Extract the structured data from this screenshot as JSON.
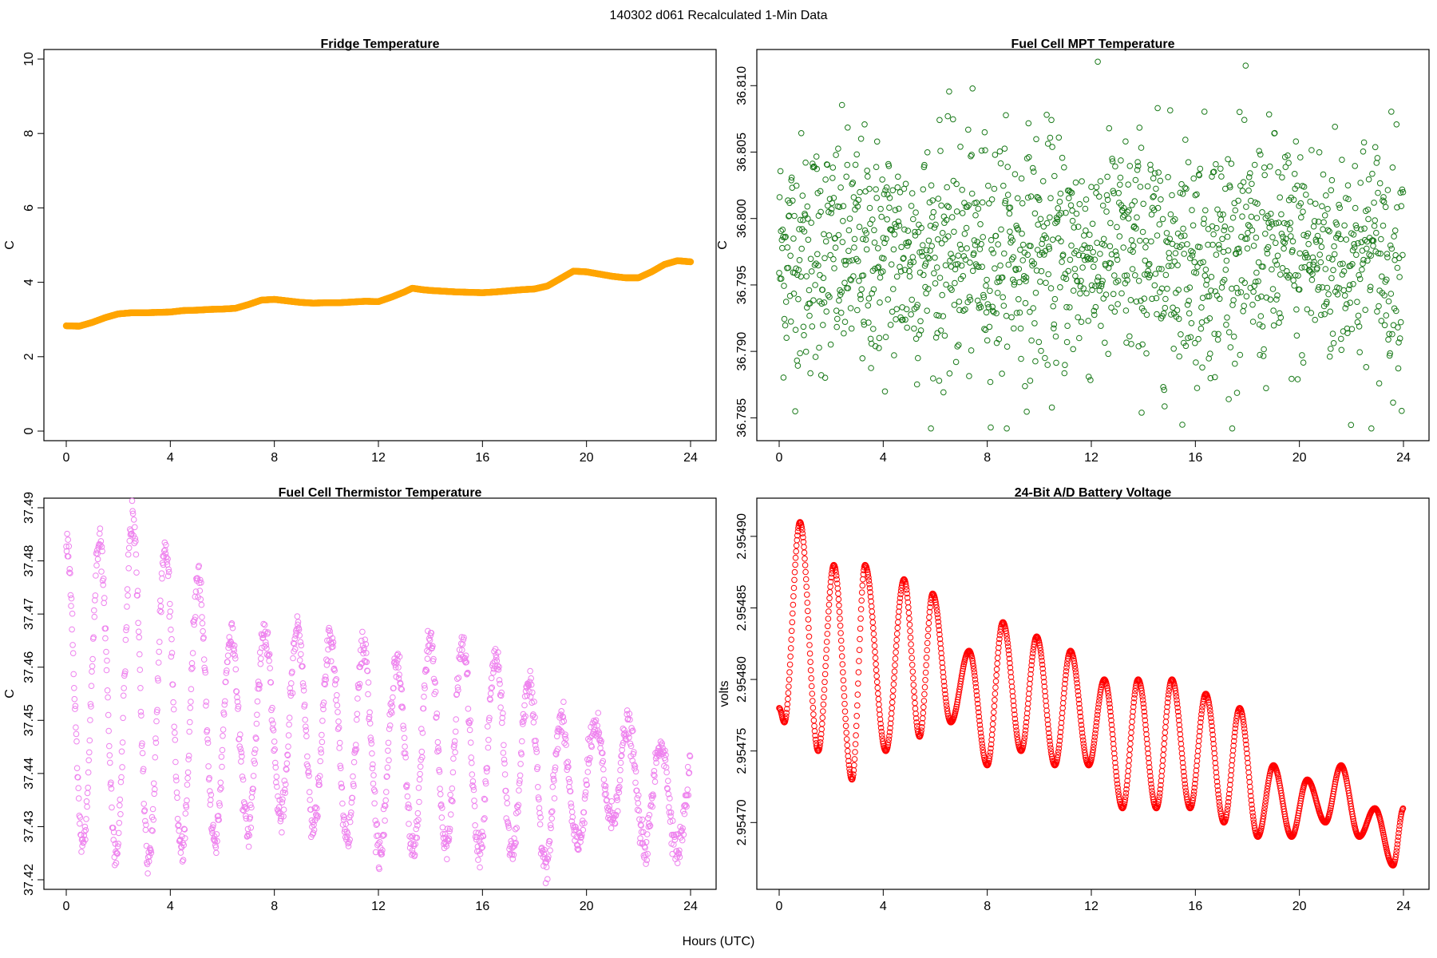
{
  "figure": {
    "title": "140302   d061   Recalculated 1-Min Data",
    "xlabel": "Hours (UTC)"
  },
  "chart_data": [
    {
      "type": "line",
      "title": "Fridge Temperature",
      "xlabel": "",
      "ylabel": "C",
      "color": "#FFA500",
      "marker": "filled-circle",
      "xlim": [
        0,
        24
      ],
      "ylim": [
        0,
        10
      ],
      "xticks": [
        0,
        4,
        8,
        12,
        16,
        20,
        24
      ],
      "yticks": [
        0,
        2,
        4,
        6,
        8,
        10
      ],
      "series": [
        {
          "x": [
            0,
            0.5,
            1,
            1.5,
            2,
            2.5,
            3,
            3.5,
            4,
            4.5,
            5,
            5.5,
            6,
            6.5,
            7,
            7.5,
            8,
            8.5,
            9,
            9.5,
            10,
            10.5,
            11,
            11.5,
            12,
            12.5,
            13,
            13.3,
            13.7,
            14,
            14.5,
            15,
            15.5,
            16,
            16.5,
            17,
            17.5,
            18,
            18.5,
            19,
            19.5,
            20,
            20.5,
            21,
            21.5,
            22,
            22.5,
            23,
            23.5,
            24
          ],
          "values": [
            2.83,
            2.82,
            2.92,
            3.05,
            3.15,
            3.18,
            3.18,
            3.19,
            3.2,
            3.24,
            3.25,
            3.27,
            3.28,
            3.3,
            3.4,
            3.52,
            3.54,
            3.5,
            3.46,
            3.44,
            3.45,
            3.45,
            3.47,
            3.49,
            3.48,
            3.6,
            3.74,
            3.84,
            3.8,
            3.78,
            3.76,
            3.74,
            3.73,
            3.72,
            3.74,
            3.77,
            3.8,
            3.82,
            3.9,
            4.1,
            4.3,
            4.28,
            4.22,
            4.16,
            4.12,
            4.12,
            4.28,
            4.48,
            4.58,
            4.55
          ]
        }
      ]
    },
    {
      "type": "scatter",
      "title": "Fuel Cell MPT Temperature",
      "xlabel": "",
      "ylabel": "C",
      "color": "#1A7A1A",
      "marker": "open-circle",
      "xlim": [
        0,
        24
      ],
      "ylim": [
        36.784,
        36.812
      ],
      "xticks": [
        0,
        4,
        8,
        12,
        16,
        20,
        24
      ],
      "yticks": [
        36.785,
        36.79,
        36.795,
        36.8,
        36.805,
        36.81
      ],
      "pattern": "noise",
      "n_points": 1440,
      "center": 36.7973,
      "spread": 0.0045,
      "range": [
        36.7842,
        36.8118
      ]
    },
    {
      "type": "scatter",
      "title": "Fuel Cell Thermistor Temperature",
      "xlabel": "",
      "ylabel": "C",
      "color": "#EE82EE",
      "marker": "open-circle",
      "xlim": [
        0,
        24
      ],
      "ylim": [
        37.42,
        37.49
      ],
      "xticks": [
        0,
        4,
        8,
        12,
        16,
        20,
        24
      ],
      "yticks": [
        37.42,
        37.43,
        37.44,
        37.45,
        37.46,
        37.47,
        37.48,
        37.49
      ],
      "pattern": "oscillation",
      "period_hours": 1.27,
      "n_points": 1440,
      "upper_envelope": {
        "x": [
          0,
          1,
          2.6,
          4,
          5.2,
          6.5,
          8,
          9,
          10.5,
          12,
          13,
          14.2,
          16,
          17,
          18.3,
          19.5,
          21,
          22,
          24
        ],
        "y": [
          37.485,
          37.482,
          37.488,
          37.481,
          37.476,
          37.465,
          37.468,
          37.467,
          37.465,
          37.463,
          37.461,
          37.466,
          37.463,
          37.461,
          37.455,
          37.447,
          37.45,
          37.448,
          37.443
        ]
      },
      "lower_envelope": {
        "x": [
          0,
          2,
          3.3,
          6,
          8,
          10,
          12,
          14,
          16,
          18,
          19,
          20.5,
          22.5,
          24
        ],
        "y": [
          37.427,
          37.424,
          37.423,
          37.427,
          37.432,
          37.43,
          37.425,
          37.426,
          37.425,
          37.425,
          37.421,
          37.433,
          37.425,
          37.426
        ]
      }
    },
    {
      "type": "scatter",
      "title": "24-Bit A/D Battery Voltage",
      "xlabel": "",
      "ylabel": "volts",
      "color": "#FF0000",
      "marker": "open-circle",
      "xlim": [
        0,
        24
      ],
      "ylim": [
        2.95466,
        2.95492
      ],
      "xticks": [
        0,
        4,
        8,
        12,
        16,
        20,
        24
      ],
      "yticks": [
        2.9547,
        2.95475,
        2.9548,
        2.95485,
        2.9549
      ],
      "pattern": "damped-oscillation",
      "n_points": 1440,
      "extrema": {
        "x": [
          0,
          0.2,
          0.8,
          1.5,
          2.1,
          2.8,
          3.3,
          4.1,
          4.8,
          5.4,
          5.9,
          6.6,
          7.3,
          8,
          8.6,
          9.3,
          9.9,
          10.6,
          11.2,
          11.9,
          12.5,
          13.2,
          13.8,
          14.5,
          15.1,
          15.8,
          16.4,
          17.1,
          17.7,
          18.4,
          19,
          19.7,
          20.3,
          21,
          21.6,
          22.3,
          22.9,
          23.6,
          24
        ],
        "y": [
          2.95478,
          2.95477,
          2.95491,
          2.95475,
          2.95488,
          2.95473,
          2.95488,
          2.95475,
          2.95487,
          2.95476,
          2.95486,
          2.95477,
          2.95482,
          2.95474,
          2.95484,
          2.95475,
          2.95483,
          2.95474,
          2.95482,
          2.95474,
          2.9548,
          2.95471,
          2.9548,
          2.95471,
          2.9548,
          2.95471,
          2.95479,
          2.9547,
          2.95478,
          2.95469,
          2.95474,
          2.95469,
          2.95473,
          2.9547,
          2.95474,
          2.95469,
          2.95471,
          2.95467,
          2.95471
        ]
      }
    }
  ]
}
